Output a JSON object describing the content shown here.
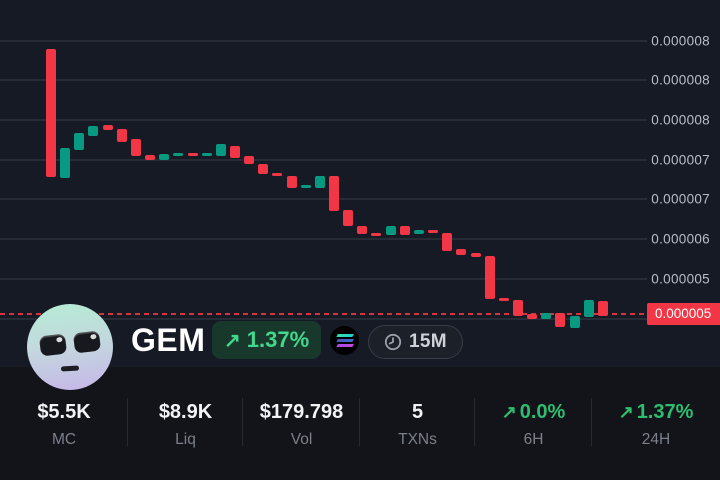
{
  "token": {
    "name": "GEM",
    "change": {
      "arrow": "↗",
      "value": "1.37%"
    },
    "chain_icon": "solana",
    "timeframe": "15M"
  },
  "stats": {
    "mc": {
      "value": "$5.5K",
      "label": "MC"
    },
    "liq": {
      "value": "$8.9K",
      "label": "Liq"
    },
    "vol": {
      "value": "$179.798",
      "label": "Vol"
    },
    "txns": {
      "value": "5",
      "label": "TXNs"
    },
    "h6": {
      "arrow": "↗",
      "value": "0.0%",
      "label": "6H"
    },
    "h24": {
      "arrow": "↗",
      "value": "1.37%",
      "label": "24H"
    }
  },
  "colors": {
    "chart_bg": "#161a24",
    "panel_bg": "#131419",
    "up": "#089981",
    "down": "#f23645",
    "accent_green": "#42d78c",
    "stat_green": "#2ebd70",
    "price_tag_bg": "#f23645"
  },
  "chart_data": {
    "type": "candlestick",
    "title": "GEM token price chart, 15M candles",
    "legend_position": "none",
    "grid": true,
    "price_unit_multiplier": 1e-06,
    "ylim_micro": [
      4.39,
      9.01
    ],
    "gridline_prices_micro": [
      8.5,
      8.0,
      7.5,
      7.0,
      6.5,
      6.0,
      5.5,
      5.0
    ],
    "y_axis_tick_labels": [
      "0.000008",
      "0.000008",
      "0.000008",
      "0.000007",
      "0.000007",
      "0.000006",
      "0.000005",
      "0.000005"
    ],
    "current_price_micro": 5.06,
    "current_price_label": "0.000005",
    "candles_open_close_micro": [
      [
        8.39,
        6.78
      ],
      [
        6.77,
        7.15
      ],
      [
        7.12,
        7.34
      ],
      [
        7.3,
        7.42
      ],
      [
        7.44,
        7.37
      ],
      [
        7.39,
        7.22
      ],
      [
        7.26,
        7.04
      ],
      [
        7.06,
        6.99
      ],
      [
        6.99,
        7.07
      ],
      [
        7.05,
        7.08
      ],
      [
        7.08,
        7.04
      ],
      [
        7.04,
        7.08
      ],
      [
        7.04,
        7.2
      ],
      [
        7.17,
        7.02
      ],
      [
        7.04,
        6.94
      ],
      [
        6.94,
        6.82
      ],
      [
        6.83,
        6.79
      ],
      [
        6.8,
        6.64
      ],
      [
        6.64,
        6.68
      ],
      [
        6.64,
        6.79
      ],
      [
        6.8,
        6.35
      ],
      [
        6.37,
        6.16
      ],
      [
        6.17,
        6.07
      ],
      [
        6.08,
        6.05
      ],
      [
        6.05,
        6.16
      ],
      [
        6.16,
        6.05
      ],
      [
        6.06,
        6.12
      ],
      [
        6.12,
        6.08
      ],
      [
        6.08,
        5.85
      ],
      [
        5.88,
        5.8
      ],
      [
        5.82,
        5.77
      ],
      [
        5.79,
        5.25
      ],
      [
        5.26,
        5.22
      ],
      [
        5.23,
        5.03
      ],
      [
        5.06,
        4.99
      ],
      [
        4.99,
        5.07
      ],
      [
        5.07,
        4.89
      ],
      [
        4.88,
        5.03
      ],
      [
        5.02,
        5.23
      ],
      [
        5.22,
        5.03
      ]
    ]
  }
}
